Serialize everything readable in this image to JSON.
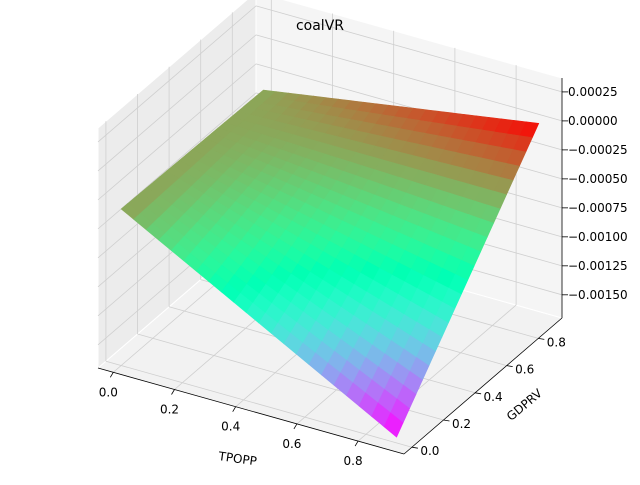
{
  "chart_data": {
    "type": "surface3d",
    "title": "coalVR",
    "xlabel": "TPOPP",
    "ylabel": "GDPRV",
    "zlabel": "",
    "colormap": "rainbow",
    "x_ticks": [
      "0.0",
      "0.2",
      "0.4",
      "0.6",
      "0.8"
    ],
    "x_tick_values": [
      0.0,
      0.2,
      0.4,
      0.6,
      0.8
    ],
    "y_ticks": [
      "0.0",
      "0.2",
      "0.4",
      "0.6",
      "0.8"
    ],
    "y_tick_values": [
      0.0,
      0.2,
      0.4,
      0.6,
      0.8
    ],
    "z_ticks": [
      "0.00025",
      "0.00000",
      "−0.00025",
      "−0.00050",
      "−0.00075",
      "−0.00100",
      "−0.00125",
      "−0.00150"
    ],
    "z_tick_values": [
      0.00025,
      0.0,
      -0.00025,
      -0.0005,
      -0.00075,
      -0.001,
      -0.00125,
      -0.0015
    ],
    "xlim": [
      -0.05,
      0.95
    ],
    "ylim": [
      -0.05,
      0.95
    ],
    "zlim": [
      -0.0017,
      0.00037
    ],
    "surface": {
      "x_range": [
        0.0,
        0.9
      ],
      "y_range": [
        0.0,
        0.9
      ],
      "corner_values": {
        "x0_y0": -0.00035,
        "x1_y0": -0.00165,
        "x0_y1": -0.00038,
        "x1_y1": 0.0
      },
      "grid_steps": 22
    }
  }
}
